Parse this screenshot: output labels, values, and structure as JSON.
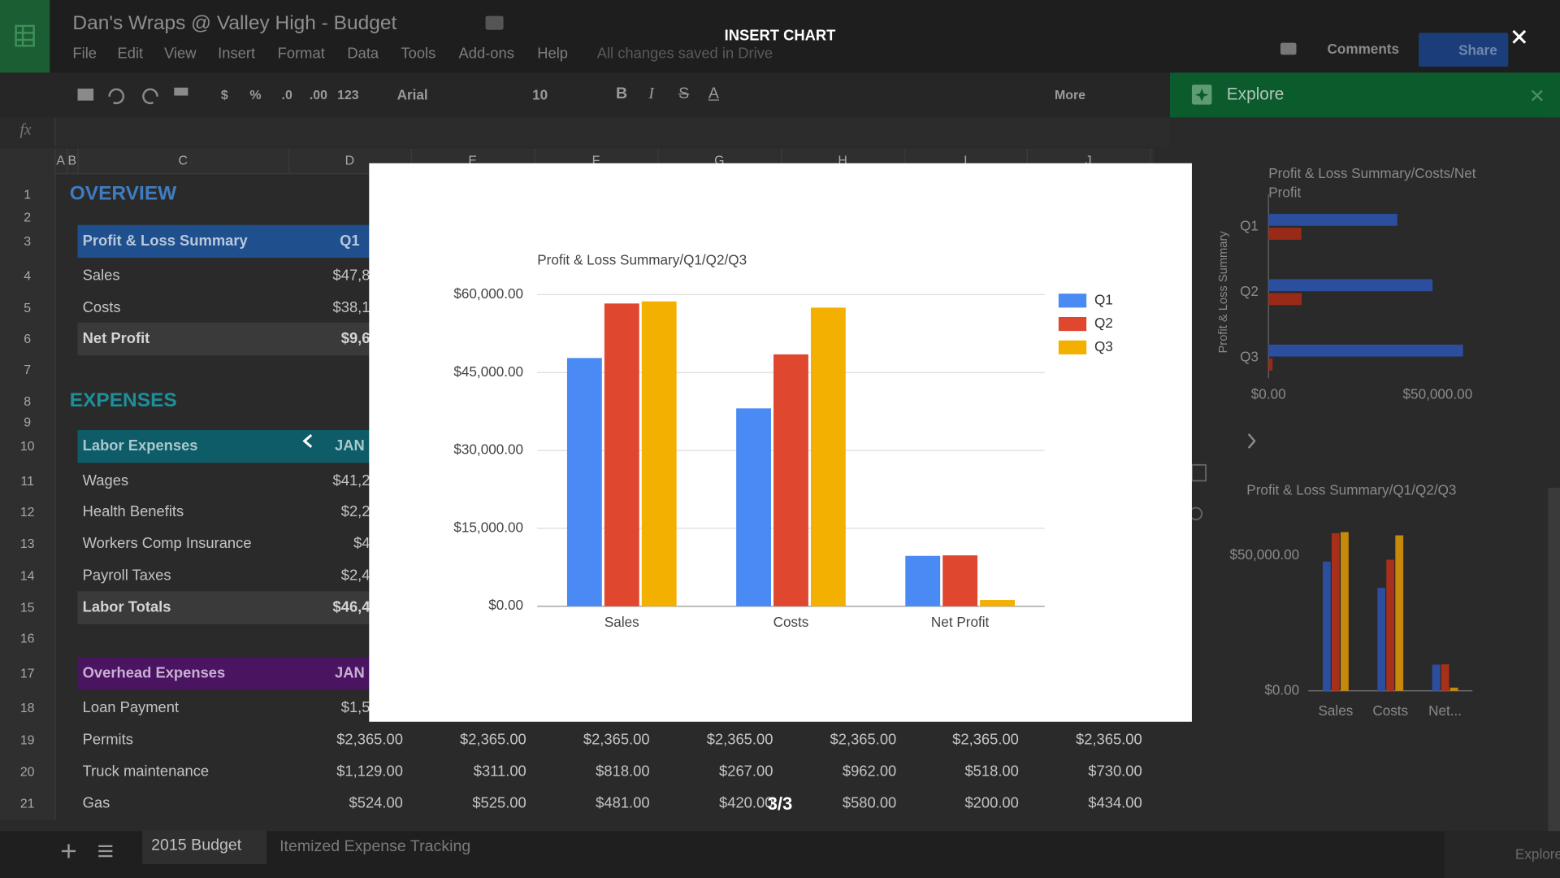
{
  "header": {
    "title": "Dan's Wraps @ Valley High - Budget",
    "menu": [
      "File",
      "Edit",
      "View",
      "Insert",
      "Format",
      "Data",
      "Tools",
      "Add-ons",
      "Help"
    ],
    "save_status": "All changes saved in Drive",
    "comments": "Comments",
    "share": "Share"
  },
  "toolbar": {
    "number_formats": [
      "$",
      "%",
      ".0",
      ".00",
      "123"
    ],
    "font": "Arial",
    "font_size": "10",
    "format_buttons": [
      "B",
      "I",
      "S",
      "A"
    ],
    "more": "More"
  },
  "formula_bar": {
    "label": "fx"
  },
  "sheet": {
    "columns": [
      "A",
      "B",
      "C",
      "D",
      "E",
      "F",
      "G",
      "H",
      "I",
      "J"
    ],
    "row_numbers": [
      1,
      2,
      3,
      4,
      5,
      6,
      7,
      8,
      9,
      10,
      11,
      12,
      13,
      14,
      15,
      16,
      17,
      18,
      19,
      20,
      21
    ],
    "rows": [
      [
        "OVERVIEW"
      ],
      [],
      [
        "Profit & Loss Summary",
        "Q1"
      ],
      [
        "Sales",
        "$47,8"
      ],
      [
        "Costs",
        "$38,1"
      ],
      [
        "Net Profit",
        "$9,6"
      ],
      [],
      [
        "EXPENSES"
      ],
      [],
      [
        "Labor Expenses",
        "JAN"
      ],
      [
        "Wages",
        "$41,2"
      ],
      [
        "Health Benefits",
        "$2,2"
      ],
      [
        "Workers Comp Insurance",
        "$4"
      ],
      [
        "Payroll Taxes",
        "$2,4"
      ],
      [
        "Labor Totals",
        "$46,4"
      ],
      [],
      [
        "Overhead Expenses",
        "JAN"
      ],
      [
        "Loan Payment",
        "$1,5"
      ],
      [
        "Permits",
        "$2,365.00",
        "$2,365.00",
        "$2,365.00",
        "$2,365.00",
        "$2,365.00",
        "$2,365.00",
        "$2,365.00"
      ],
      [
        "Truck maintenance",
        "$1,129.00",
        "$311.00",
        "$818.00",
        "$267.00",
        "$962.00",
        "$518.00",
        "$730.00"
      ],
      [
        "Gas",
        "$524.00",
        "$525.00",
        "$481.00",
        "$420.00",
        "$580.00",
        "$200.00",
        "$434.00"
      ]
    ]
  },
  "sheet_tabs": {
    "tabs": [
      "2015 Budget",
      "Itemized Expense Tracking"
    ]
  },
  "dialog": {
    "title": "INSERT CHART",
    "counter": "3/3"
  },
  "explore": {
    "title": "Explore",
    "footer": "Explore"
  },
  "chart_data": [
    {
      "type": "bar",
      "title": "Profit & Loss Summary/Q1/Q2/Q3",
      "categories": [
        "Sales",
        "Costs",
        "Net Profit"
      ],
      "series": [
        {
          "name": "Q1",
          "color": "#4a8af4",
          "values": [
            47800,
            38100,
            9700
          ]
        },
        {
          "name": "Q2",
          "color": "#e0472f",
          "values": [
            58300,
            48500,
            9800
          ]
        },
        {
          "name": "Q3",
          "color": "#f4b000",
          "values": [
            58700,
            57500,
            1200
          ]
        }
      ],
      "ylim": [
        0,
        60000
      ],
      "yticks": [
        {
          "value": 0,
          "label": "$0.00"
        },
        {
          "value": 15000,
          "label": "$15,000.00"
        },
        {
          "value": 30000,
          "label": "$30,000.00"
        },
        {
          "value": 45000,
          "label": "$45,000.00"
        },
        {
          "value": 60000,
          "label": "$60,000.00"
        }
      ],
      "grid": true,
      "legend": "right"
    },
    {
      "type": "hbar",
      "title": "Profit & Loss Summary/Costs/Net Profit",
      "y_label": "Profit & Loss Summary",
      "categories": [
        "Q1",
        "Q2",
        "Q3"
      ],
      "series": [
        {
          "color": "#2b4f9e",
          "values": [
            38100,
            48500,
            57500
          ]
        },
        {
          "color": "#9a2a18",
          "values": [
            9700,
            9800,
            1200
          ]
        }
      ],
      "xlim": [
        0,
        60000
      ],
      "xticks": [
        {
          "value": 0,
          "label": "$0.00"
        },
        {
          "value": 50000,
          "label": "$50,000.00"
        }
      ]
    },
    {
      "type": "bar",
      "title": "Profit & Loss Summary/Q1/Q2/Q3",
      "categories": [
        "Sales",
        "Costs",
        "Net..."
      ],
      "series": [
        {
          "color": "#2b4f9e",
          "values": [
            47800,
            38100,
            9700
          ]
        },
        {
          "color": "#a8301a",
          "values": [
            58300,
            48500,
            9800
          ]
        },
        {
          "color": "#c8880a",
          "values": [
            58700,
            57500,
            1200
          ]
        }
      ],
      "ylim": [
        0,
        60000
      ],
      "yticks": [
        {
          "value": 0,
          "label": "$0.00"
        },
        {
          "value": 50000,
          "label": "$50,000.00"
        }
      ]
    }
  ]
}
